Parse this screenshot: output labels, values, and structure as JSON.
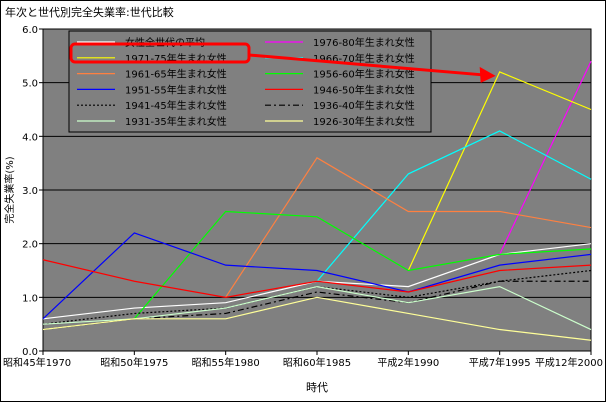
{
  "chart_data": {
    "type": "line",
    "title": "年次と世代別完全失業率:世代比較",
    "xlabel": "時代",
    "ylabel": "完全失業率(%)",
    "ylim": [
      0,
      6
    ],
    "yticks": [
      "0.0",
      "1.0",
      "2.0",
      "3.0",
      "4.0",
      "5.0",
      "6.0"
    ],
    "categories": [
      "昭和45年1970",
      "昭和50年1975",
      "昭和55年1980",
      "昭和60年1985",
      "平成2年1990",
      "平成7年1995",
      "平成12年2000"
    ],
    "grid": true,
    "legend_position": "top-left inside",
    "plot_background": "#808080",
    "highlight_color": "#ff0000",
    "series": [
      {
        "name": "女性全世代の平均",
        "color": "#ffffff",
        "dash": "solid",
        "values": [
          0.6,
          0.8,
          0.9,
          1.3,
          1.2,
          1.8,
          2.0
        ]
      },
      {
        "name": "1976-80年生まれ女性",
        "color": "#ff00ff",
        "dash": "solid",
        "values": [
          null,
          null,
          null,
          null,
          null,
          1.8,
          5.4
        ]
      },
      {
        "name": "1971-75年生まれ女性",
        "color": "#ffff00",
        "dash": "solid",
        "values": [
          null,
          null,
          null,
          null,
          1.5,
          5.2,
          4.5
        ]
      },
      {
        "name": "1966-70年生まれ女性",
        "color": "#00ffff",
        "dash": "solid",
        "values": [
          null,
          null,
          null,
          1.3,
          3.3,
          4.1,
          3.2
        ]
      },
      {
        "name": "1961-65年生まれ女性",
        "color": "#ff8040",
        "dash": "solid",
        "values": [
          null,
          null,
          1.0,
          3.6,
          2.6,
          2.6,
          2.3
        ]
      },
      {
        "name": "1956-60年生まれ女性",
        "color": "#00ff00",
        "dash": "solid",
        "values": [
          null,
          0.6,
          2.6,
          2.5,
          1.5,
          1.8,
          1.9
        ]
      },
      {
        "name": "1951-55年生まれ女性",
        "color": "#0000ff",
        "dash": "solid",
        "values": [
          0.6,
          2.2,
          1.6,
          1.5,
          1.1,
          1.6,
          1.8
        ]
      },
      {
        "name": "1946-50年生まれ女性",
        "color": "#ff0000",
        "dash": "solid",
        "values": [
          1.7,
          1.3,
          1.0,
          1.3,
          1.1,
          1.5,
          1.6
        ]
      },
      {
        "name": "1941-45年生まれ女性",
        "color": "#000000",
        "dash": "dotted",
        "values": [
          0.5,
          0.7,
          0.8,
          1.2,
          1.0,
          1.3,
          1.5
        ]
      },
      {
        "name": "1936-40年生まれ女性",
        "color": "#000000",
        "dash": "dashdot",
        "values": [
          0.4,
          0.6,
          0.7,
          1.1,
          0.9,
          1.3,
          1.3
        ]
      },
      {
        "name": "1931-35年生まれ女性",
        "color": "#ccffcc",
        "dash": "solid",
        "values": [
          0.5,
          0.6,
          0.8,
          1.2,
          0.9,
          1.2,
          0.4
        ]
      },
      {
        "name": "1926-30年生まれ女性",
        "color": "#ffff99",
        "dash": "solid",
        "values": [
          0.4,
          0.6,
          0.6,
          1.0,
          0.7,
          0.4,
          0.2
        ]
      }
    ]
  }
}
